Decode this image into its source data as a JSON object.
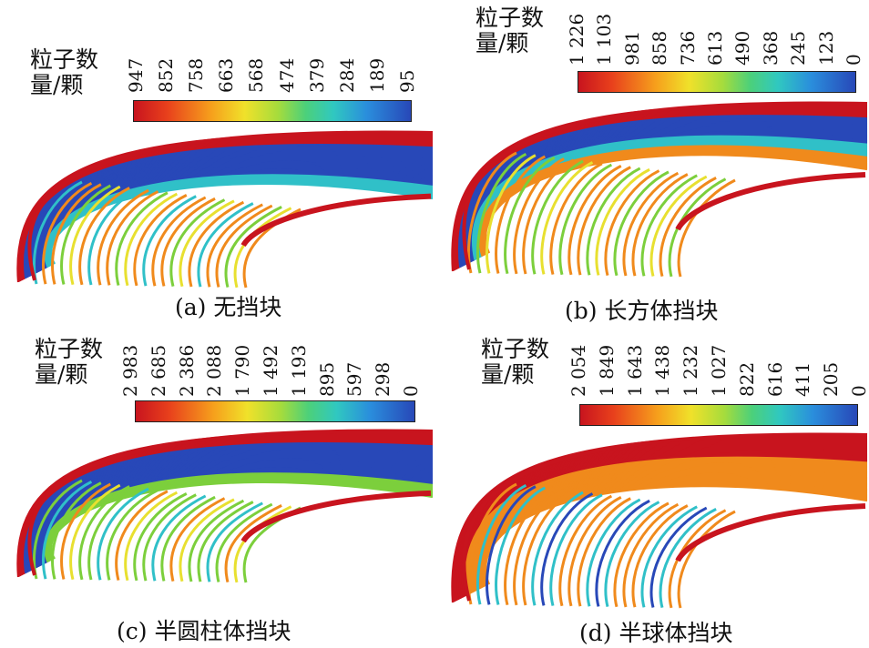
{
  "colors": {
    "red": "#c8141e",
    "orange": "#f08a1c",
    "yellow": "#e8e030",
    "green": "#7ccf3c",
    "cyan": "#30c0c8",
    "blue": "#2848b8"
  },
  "legend_label": {
    "line1": "粒子数",
    "line2": "量/颗"
  },
  "panels": [
    {
      "caption": "(a) 无挡块",
      "ticks": [
        "947",
        "852",
        "758",
        "663",
        "568",
        "474",
        "379",
        "284",
        "189",
        "95"
      ]
    },
    {
      "caption": "(b) 长方体挡块",
      "ticks": [
        "1 226",
        "1 103",
        "981",
        "858",
        "736",
        "613",
        "490",
        "368",
        "245",
        "123",
        "0"
      ]
    },
    {
      "caption": "(c) 半圆柱体挡块",
      "ticks": [
        "2 983",
        "2 685",
        "2 386",
        "2 088",
        "1 790",
        "1 492",
        "1 193",
        "895",
        "597",
        "298",
        "0"
      ]
    },
    {
      "caption": "(d) 半球体挡块",
      "ticks": [
        "2 054",
        "1 849",
        "1 643",
        "1 438",
        "1 232",
        "1 027",
        "822",
        "616",
        "411",
        "205",
        "0"
      ]
    }
  ]
}
